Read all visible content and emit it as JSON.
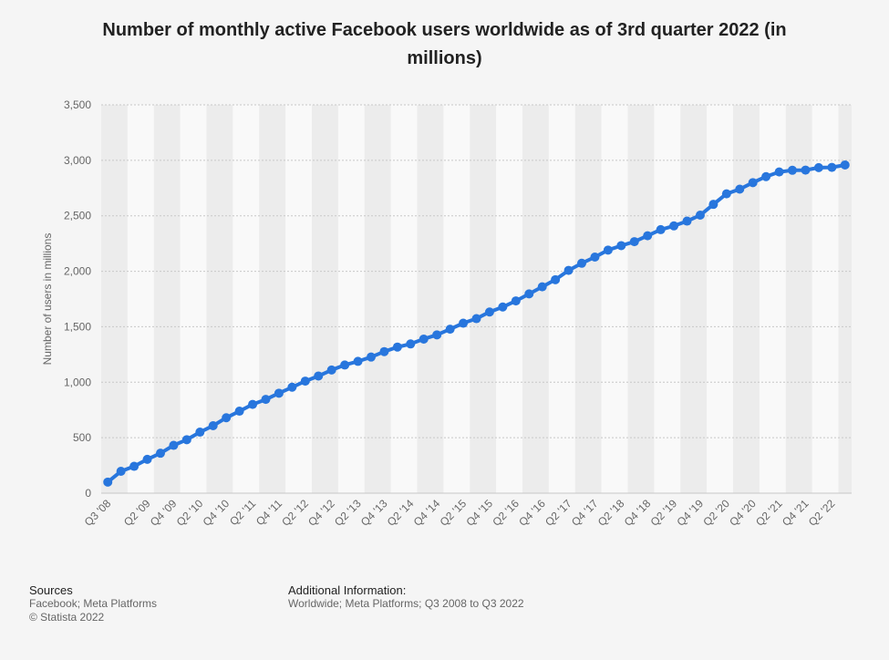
{
  "chart_data": {
    "type": "line",
    "title": "Number of monthly active Facebook users worldwide as of 3rd quarter 2022 (in millions)",
    "ylabel": "Number of users in millions",
    "xlabel": "",
    "ylim": [
      0,
      3500
    ],
    "yticks": [
      0,
      500,
      1000,
      1500,
      2000,
      2500,
      3000,
      3500
    ],
    "ytick_labels": [
      "0",
      "500",
      "1,000",
      "1,500",
      "2,000",
      "2,500",
      "3,000",
      "3,500"
    ],
    "grid": true,
    "legend": "none",
    "line_color": "#2876dd",
    "x": [
      "Q3 '08",
      "Q4 '08",
      "Q1 '09",
      "Q2 '09",
      "Q3 '09",
      "Q4 '09",
      "Q1 '10",
      "Q2 '10",
      "Q3 '10",
      "Q4 '10",
      "Q1 '11",
      "Q2 '11",
      "Q3 '11",
      "Q4 '11",
      "Q1 '12",
      "Q2 '12",
      "Q3 '12",
      "Q4 '12",
      "Q1 '13",
      "Q2 '13",
      "Q3 '13",
      "Q4 '13",
      "Q1 '14",
      "Q2 '14",
      "Q3 '14",
      "Q4 '14",
      "Q1 '15",
      "Q2 '15",
      "Q3 '15",
      "Q4 '15",
      "Q1 '16",
      "Q2 '16",
      "Q3 '16",
      "Q4 '16",
      "Q1 '17",
      "Q2 '17",
      "Q3 '17",
      "Q4 '17",
      "Q1 '18",
      "Q2 '18",
      "Q3 '18",
      "Q4 '18",
      "Q1 '19",
      "Q2 '19",
      "Q3 '19",
      "Q4 '19",
      "Q1 '20",
      "Q2 '20",
      "Q3 '20",
      "Q4 '20",
      "Q1 '21",
      "Q2 '21",
      "Q3 '21",
      "Q4 '21",
      "Q1 '22",
      "Q2 '22",
      "Q3 '22"
    ],
    "visible_xtick_labels": [
      "Q3 '08",
      "Q2 '09",
      "Q4 '09",
      "Q2 '10",
      "Q4 '10",
      "Q2 '11",
      "Q4 '11",
      "Q2 '12",
      "Q4 '12",
      "Q2 '13",
      "Q4 '13",
      "Q2 '14",
      "Q4 '14",
      "Q2 '15",
      "Q4 '15",
      "Q2 '16",
      "Q4 '16",
      "Q2 '17",
      "Q4 '17",
      "Q2 '18",
      "Q4 '18",
      "Q2 '19",
      "Q4 '19",
      "Q2 '20",
      "Q4 '20",
      "Q2 '21",
      "Q4 '21",
      "Q2 '22"
    ],
    "values": [
      100,
      197,
      242,
      305,
      360,
      431,
      482,
      550,
      608,
      680,
      739,
      800,
      845,
      901,
      955,
      1010,
      1056,
      1110,
      1155,
      1188,
      1227,
      1276,
      1317,
      1345,
      1389,
      1427,
      1478,
      1532,
      1573,
      1633,
      1678,
      1733,
      1796,
      1860,
      1924,
      2008,
      2072,
      2128,
      2191,
      2231,
      2267,
      2320,
      2375,
      2409,
      2452,
      2506,
      2603,
      2698,
      2740,
      2799,
      2853,
      2895,
      2910,
      2912,
      2934,
      2936,
      2958
    ]
  },
  "footer": {
    "sources_heading": "Sources",
    "sources_line1": "Facebook; Meta Platforms",
    "sources_line2": "© Statista 2022",
    "info_heading": "Additional Information:",
    "info_line1": "Worldwide; Meta Platforms; Q3 2008 to Q3 2022"
  }
}
